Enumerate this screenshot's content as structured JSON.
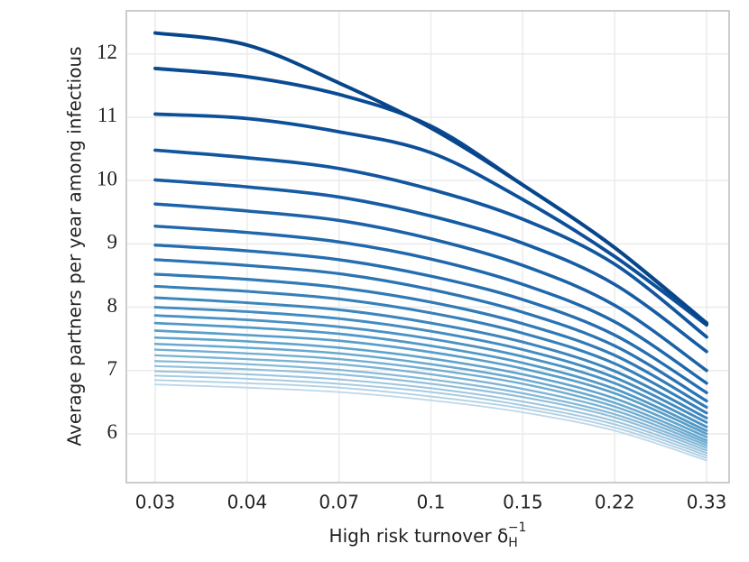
{
  "chart_data": {
    "type": "line",
    "xlabel": {
      "text": "High risk turnover δ",
      "sub": "H",
      "sup": "−1"
    },
    "ylabel": "Average partners per year among infectious",
    "categories": [
      "0.03",
      "0.04",
      "0.07",
      "0.1",
      "0.15",
      "0.22",
      "0.33"
    ],
    "ylim": [
      5.23,
      12.68
    ],
    "yticks": [
      6,
      7,
      8,
      9,
      10,
      11,
      12
    ],
    "grid": true,
    "series": [
      {
        "color": "#08468b",
        "values": [
          12.33,
          12.14,
          11.54,
          10.83,
          9.93,
          8.94,
          7.75
        ]
      },
      {
        "color": "#0a4b93",
        "values": [
          11.77,
          11.64,
          11.36,
          10.86,
          9.93,
          8.94,
          7.73
        ]
      },
      {
        "color": "#0d5099",
        "values": [
          11.05,
          10.98,
          10.77,
          10.44,
          9.7,
          8.8,
          7.72
        ]
      },
      {
        "color": "#11569f",
        "values": [
          10.48,
          10.36,
          10.19,
          9.86,
          9.39,
          8.68,
          7.53
        ]
      },
      {
        "color": "#165ca4",
        "values": [
          10.01,
          9.9,
          9.74,
          9.44,
          9.01,
          8.36,
          7.3
        ]
      },
      {
        "color": "#1b62a8",
        "values": [
          9.63,
          9.52,
          9.37,
          9.08,
          8.66,
          8.03,
          7.0
        ]
      },
      {
        "color": "#2068ad",
        "values": [
          9.28,
          9.18,
          9.03,
          8.76,
          8.36,
          7.77,
          6.8
        ]
      },
      {
        "color": "#256eb1",
        "values": [
          8.98,
          8.89,
          8.75,
          8.49,
          8.12,
          7.56,
          6.65
        ]
      },
      {
        "color": "#2b74b4",
        "values": [
          8.75,
          8.66,
          8.53,
          8.28,
          7.92,
          7.39,
          6.52
        ]
      },
      {
        "color": "#307ab7",
        "values": [
          8.52,
          8.44,
          8.31,
          8.08,
          7.74,
          7.24,
          6.42
        ]
      },
      {
        "color": "#3680ba",
        "values": [
          8.33,
          8.25,
          8.13,
          7.91,
          7.59,
          7.11,
          6.33
        ]
      },
      {
        "color": "#3c86bd",
        "values": [
          8.15,
          8.07,
          7.96,
          7.75,
          7.45,
          6.99,
          6.25
        ]
      },
      {
        "color": "#438cc0",
        "values": [
          8.0,
          7.93,
          7.82,
          7.62,
          7.33,
          6.89,
          6.18
        ]
      },
      {
        "color": "#4a92c3",
        "values": [
          7.87,
          7.8,
          7.69,
          7.5,
          7.22,
          6.8,
          6.11
        ]
      },
      {
        "color": "#5198c6",
        "values": [
          7.75,
          7.68,
          7.58,
          7.39,
          7.12,
          6.71,
          6.05
        ]
      },
      {
        "color": "#589ec9",
        "values": [
          7.63,
          7.56,
          7.47,
          7.29,
          7.03,
          6.64,
          6.0
        ]
      },
      {
        "color": "#60a3cc",
        "values": [
          7.52,
          7.46,
          7.36,
          7.19,
          6.94,
          6.56,
          5.95
        ]
      },
      {
        "color": "#69a9cf",
        "values": [
          7.42,
          7.36,
          7.27,
          7.1,
          6.86,
          6.49,
          5.9
        ]
      },
      {
        "color": "#72aed2",
        "values": [
          7.33,
          7.27,
          7.18,
          7.02,
          6.79,
          6.43,
          5.86
        ]
      },
      {
        "color": "#7cb3d5",
        "values": [
          7.24,
          7.18,
          7.1,
          6.94,
          6.71,
          6.37,
          5.82
        ]
      },
      {
        "color": "#86b9d8",
        "values": [
          7.15,
          7.1,
          7.01,
          6.86,
          6.64,
          6.31,
          5.78
        ]
      },
      {
        "color": "#91bfdb",
        "values": [
          7.07,
          7.02,
          6.94,
          6.79,
          6.58,
          6.26,
          5.74
        ]
      },
      {
        "color": "#9cc5de",
        "values": [
          6.99,
          6.94,
          6.86,
          6.72,
          6.51,
          6.2,
          5.7
        ]
      },
      {
        "color": "#a7cbe1",
        "values": [
          6.92,
          6.87,
          6.79,
          6.66,
          6.45,
          6.15,
          5.66
        ]
      },
      {
        "color": "#b2d1e5",
        "values": [
          6.85,
          6.8,
          6.73,
          6.59,
          6.4,
          6.1,
          5.62
        ]
      },
      {
        "color": "#bdd7e8",
        "values": [
          6.78,
          6.73,
          6.66,
          6.53,
          6.34,
          6.05,
          5.58
        ]
      }
    ]
  }
}
